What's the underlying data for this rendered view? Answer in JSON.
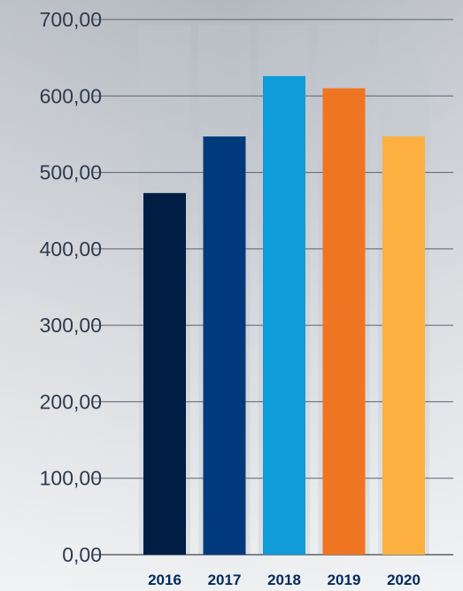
{
  "chart_data": {
    "type": "bar",
    "title": "",
    "xlabel": "",
    "ylabel": "",
    "categories": [
      "2016",
      "2017",
      "2018",
      "2019",
      "2020"
    ],
    "values": [
      473,
      547,
      626,
      610,
      547
    ],
    "bar_colors": [
      "#001d44",
      "#003a7d",
      "#109bd9",
      "#f07522",
      "#fdb03f"
    ],
    "ylim": [
      0,
      700
    ],
    "yticks": [
      0,
      100,
      200,
      300,
      400,
      500,
      600,
      700
    ],
    "ytick_labels": [
      "0,00",
      "100,00",
      "200,00",
      "300,00",
      "400,00",
      "500,00",
      "600,00",
      "700,00"
    ],
    "grid": true,
    "legend": "none"
  },
  "colors": {
    "background_top": "#b3b8bf",
    "background_bottom": "#eef0f2",
    "bar_shadow": "#c4c8cd",
    "grid": "#5a6271",
    "tick_text": "#2f3a4c",
    "category_text": "#002b5c"
  }
}
